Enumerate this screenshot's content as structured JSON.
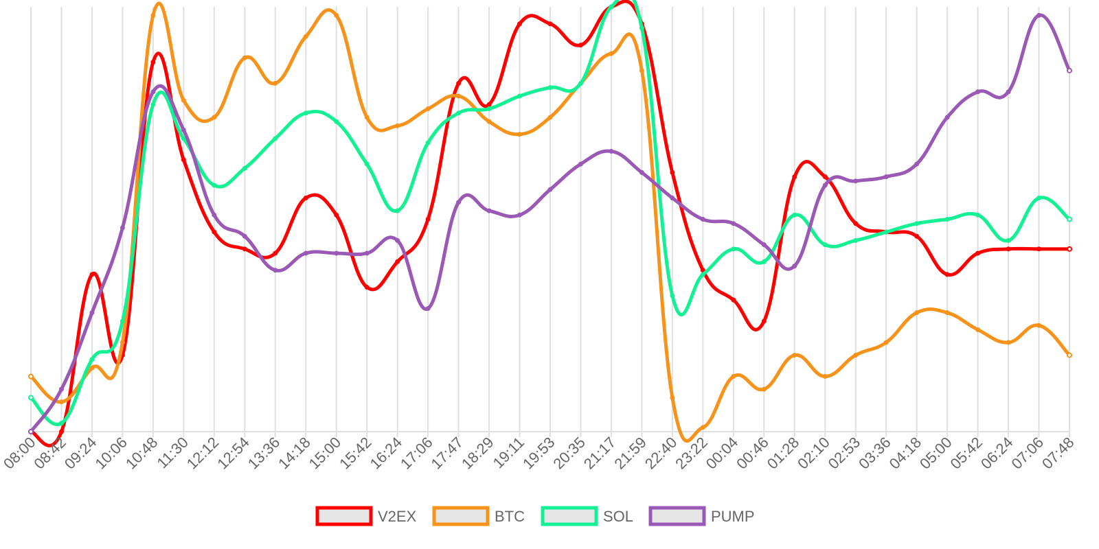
{
  "chart_data": {
    "type": "line",
    "title": "",
    "xlabel": "",
    "ylabel": "",
    "ylim": [
      0,
      100
    ],
    "grid": {
      "vertical": true,
      "horizontal": false
    },
    "legend": "bottom",
    "x": [
      "08:00",
      "08:42",
      "09:24",
      "10:06",
      "10:48",
      "11:30",
      "12:12",
      "12:54",
      "13:36",
      "14:18",
      "15:00",
      "15:42",
      "16:24",
      "17:06",
      "17:47",
      "18:29",
      "19:11",
      "19:53",
      "20:35",
      "21:17",
      "21:59",
      "22:40",
      "23:22",
      "00:04",
      "00:46",
      "01:28",
      "02:10",
      "02:53",
      "03:36",
      "04:18",
      "05:00",
      "05:42",
      "06:24",
      "07:06",
      "07:48"
    ],
    "series": [
      {
        "name": "V2EX",
        "color": "#ff0000",
        "values": [
          0,
          0,
          37,
          18,
          87,
          64,
          47,
          43,
          42,
          55,
          51,
          34,
          40,
          50,
          82,
          77,
          96,
          96,
          91,
          100,
          96,
          61,
          38,
          31,
          26,
          60,
          60,
          49,
          47,
          46,
          37,
          42,
          43,
          43,
          43
        ]
      },
      {
        "name": "BTC",
        "color": "#f7931a",
        "values": [
          13,
          7,
          15,
          21,
          98,
          78,
          74,
          88,
          82,
          93,
          98,
          74,
          72,
          76,
          79,
          73,
          70,
          74,
          82,
          89,
          85,
          8,
          1,
          13,
          10,
          18,
          13,
          18,
          21,
          28,
          28,
          24,
          21,
          25,
          18
        ]
      },
      {
        "name": "SOL",
        "color": "#14f195",
        "values": [
          8,
          2,
          17,
          26,
          77,
          69,
          58,
          62,
          69,
          75,
          73,
          63,
          52,
          68,
          75,
          76,
          79,
          81,
          82,
          100,
          95,
          32,
          37,
          43,
          40,
          51,
          44,
          45,
          47,
          49,
          50,
          51,
          45,
          55,
          50
        ]
      },
      {
        "name": "PUMP",
        "color": "#9b59b6",
        "values": [
          0,
          10,
          28,
          48,
          80,
          71,
          51,
          46,
          38,
          42,
          42,
          42,
          45,
          29,
          54,
          52,
          51,
          57,
          63,
          66,
          61,
          55,
          50,
          49,
          44,
          39,
          58,
          59,
          60,
          63,
          74,
          80,
          80,
          98,
          85
        ]
      }
    ]
  }
}
